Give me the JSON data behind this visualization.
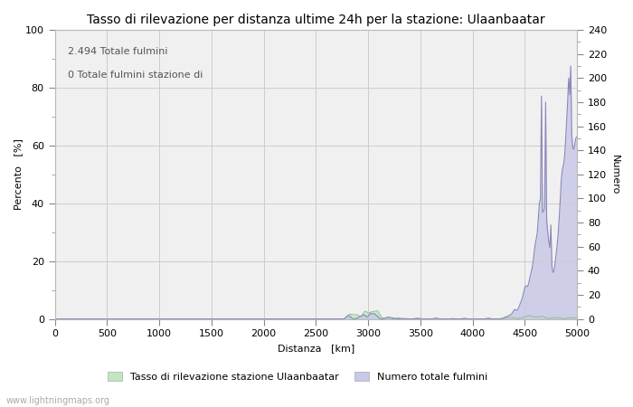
{
  "title": "Tasso di rilevazione per distanza ultime 24h per la stazione: Ulaanbaatar",
  "annotation_line1": "2.494 Totale fulmini",
  "annotation_line2": "0 Totale fulmini stazione di",
  "xlabel": "Distanza   [km]",
  "ylabel_left": "Percento   [%]",
  "ylabel_right": "Numero",
  "xlim": [
    0,
    5000
  ],
  "ylim_left": [
    0,
    100
  ],
  "ylim_right": [
    0,
    240
  ],
  "yticks_left": [
    0,
    20,
    40,
    60,
    80,
    100
  ],
  "yticks_right": [
    0,
    20,
    40,
    60,
    80,
    100,
    120,
    140,
    160,
    180,
    200,
    220,
    240
  ],
  "xticks": [
    0,
    500,
    1000,
    1500,
    2000,
    2500,
    3000,
    3500,
    4000,
    4500,
    5000
  ],
  "legend_label_green": "Tasso di rilevazione stazione Ulaanbaatar",
  "legend_label_blue": "Numero totale fulmini",
  "watermark": "www.lightningmaps.org",
  "bg_color": "#ffffff",
  "plot_bg_color": "#f0f0f0",
  "grid_color": "#cccccc",
  "fill_color_blue": "#c8c8e8",
  "line_color_blue": "#8888bb",
  "fill_color_green": "#c0e8c0",
  "line_color_green": "#88bb88",
  "title_fontsize": 10,
  "axis_fontsize": 8,
  "tick_fontsize": 8,
  "annotation_fontsize": 8
}
